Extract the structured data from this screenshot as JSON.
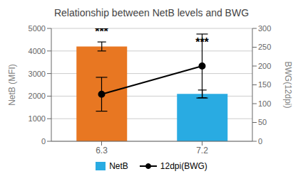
{
  "chart_data": {
    "type": "bar",
    "title": "Relationship between NetB levels and BWG",
    "categories": [
      "6.3",
      "7.2"
    ],
    "ylabel": "NetB (MFI)",
    "y2label": "BWG(12dpi)",
    "ylim": [
      0,
      5000
    ],
    "yticks": [
      0,
      1000,
      2000,
      3000,
      4000,
      5000
    ],
    "y2lim": [
      0,
      300
    ],
    "y2ticks": [
      0,
      50,
      100,
      150,
      200,
      250,
      300
    ],
    "grid": true,
    "legend": "bottom",
    "series": [
      {
        "name": "NetB",
        "type": "bar",
        "color": "#29ABE2",
        "colors": [
          "#E87722",
          "#29ABE2"
        ],
        "values": [
          4200,
          2100
        ],
        "errors": [
          200,
          170
        ]
      },
      {
        "name": "12dpi(BWG)",
        "type": "line",
        "axis": "y2",
        "color": "black",
        "marker": "o",
        "values": [
          125,
          200
        ],
        "errors": [
          45,
          85
        ]
      }
    ],
    "annotations": [
      {
        "text": "***",
        "x": "6.3",
        "y": 4700
      },
      {
        "text": "***",
        "x": "7.2",
        "y": 4200
      }
    ]
  }
}
